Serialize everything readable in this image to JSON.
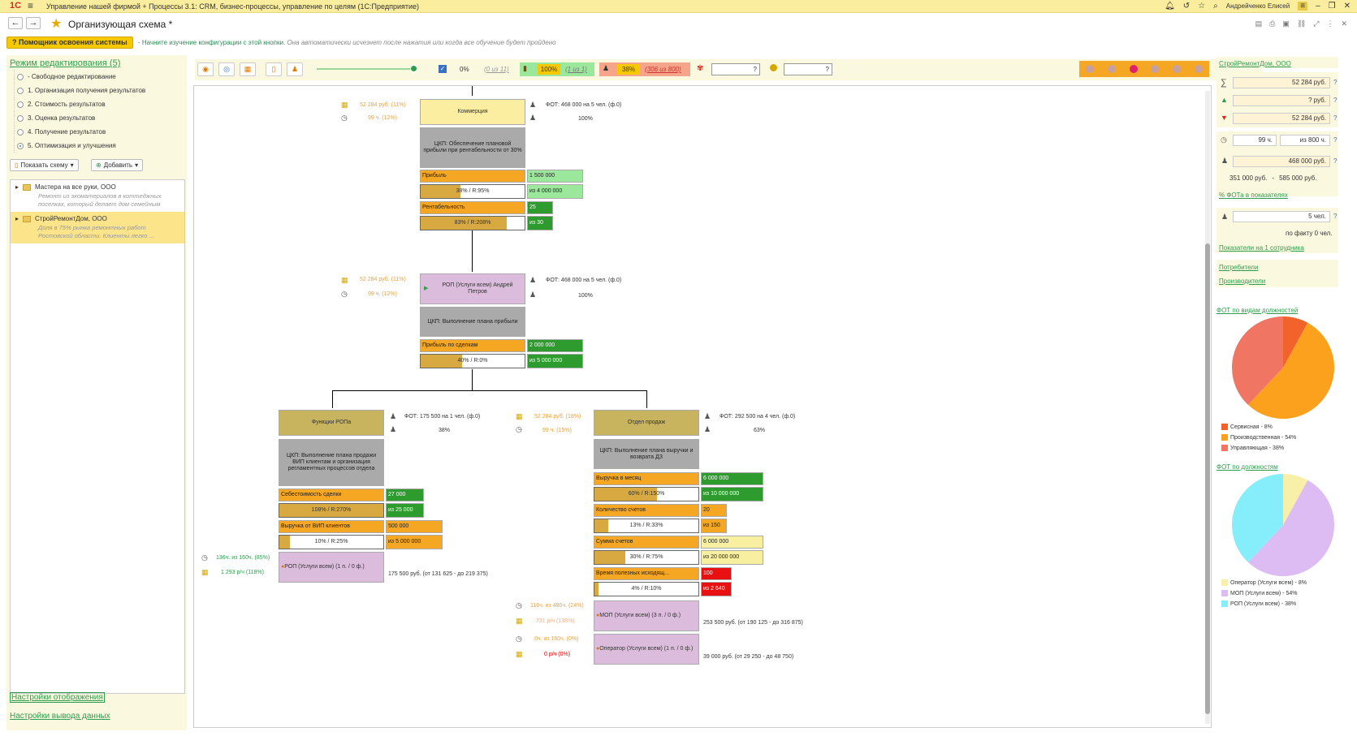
{
  "window": {
    "title": "Управление нашей фирмой + Процессы 3.1: CRM, бизнес-процессы, управление по целям (1С:Предприятие)",
    "logo": "1С",
    "user": "Андрейченко Елисей"
  },
  "page": {
    "title": "Организующая схема *"
  },
  "help": {
    "button": "Помощник освоения системы",
    "text_green": "- Начните изучение конфигурации с этой кнопки.",
    "text_gray": "Она автоматически исчезнет после нажатия или когда все обучение будет пройдено"
  },
  "left": {
    "mode_title": "Режим редактирования (5)",
    "modes": [
      "- Свободное редактирование",
      "1. Организация получения результатов",
      "2. Стоимость результатов",
      "3. Оценка результатов",
      "4. Получение результатов",
      "5. Оптимизация и улучшения"
    ],
    "show_schema": "Показать схему",
    "add": "Добавить",
    "tree": [
      {
        "name": "Мастера на все руки, ООО",
        "desc": "Ремонт из экоматериалов в коттеджных поселках, который делает дом семейным"
      },
      {
        "name": "СтройРемонтДом, ООО",
        "desc": "Доля в 75% рынка ремонтных работ Ростовской области. Клиенты легко ..."
      }
    ],
    "display_settings": "Настройки отображения",
    "output_settings": "Настройки вывода данных"
  },
  "toolbar": {
    "pct1": "0%",
    "pct1_of": "(0 из 11)",
    "pct2": "100%",
    "pct2_of": "(1 из 1)",
    "pct3": "38%",
    "pct3_of": "(306 из 800)",
    "q": "?"
  },
  "canvas": {
    "n1": {
      "side1": "52 284 руб. (11%)",
      "side2": "99 ч. (12%)",
      "title": "Коммерция",
      "fot": "ФОТ: 468 000 на 5 чел. (ф.0)",
      "pct": "100%",
      "ckp": "ЦКП: Обеспечение плановой прибыли при рентабельности от 30%",
      "k1": {
        "label": "Прибыль",
        "value": "1 500 000",
        "bar": "38% / R:95%",
        "bar_fill": 0.38,
        "of": "из 4 000 000"
      },
      "k2": {
        "label": "Рентабельность",
        "value": "25",
        "bar": "83% / R:208%",
        "bar_fill": 0.83,
        "of": "из 30"
      }
    },
    "n2": {
      "side1": "52 284 руб. (11%)",
      "side2": "99 ч. (12%)",
      "title": "РОП (Услуги всем) Андрей Петров",
      "fot": "ФОТ: 468 000 на 5 чел. (ф.0)",
      "pct": "100%",
      "ckp": "ЦКП: Выполнение плана прибыли",
      "k1": {
        "label": "Прибыль по сделкам",
        "value": "2 000 000",
        "bar": "40% / R:0%",
        "bar_fill": 0.4,
        "of": "из 5 000 000"
      }
    },
    "n3": {
      "title": "Функции РОПа",
      "fot": "ФОТ: 175 500 на 1 чел. (ф.0)",
      "pct": "38%",
      "ckp": "ЦКП: Выполнение плана продажи ВИП клиентам и организация регламентных процессов отдела",
      "k1": {
        "label": "Себестоимость сделки",
        "value": "27 000",
        "bar": "108% / R:270%",
        "bar_fill": 1.0,
        "of": "из 25 000"
      },
      "k2": {
        "label": "Выручка от ВИП клиентов",
        "value": "500 000",
        "bar": "10% / R:25%",
        "bar_fill": 0.1,
        "of": "из 5 000 000"
      },
      "side1": "136ч. из 160ч. (85%)",
      "side2": "1 293 р/ч (118%)",
      "emp": "РОП (Услуги всем) (1 п. / 0 ф.)",
      "emp_salary": "175 500 руб. (от 131 625 - до 219 375)"
    },
    "n4": {
      "side1": "52 284 руб. (18%)",
      "side2": "99 ч. (15%)",
      "title": "Отдел продаж",
      "fot": "ФОТ: 292 500 на 4 чел. (ф.0)",
      "pct": "63%",
      "ckp": "ЦКП: Выполнение плана выручки и возврата ДЗ",
      "k1": {
        "label": "Выручка в месяц",
        "value": "6 000 000",
        "bar": "60% / R:150%",
        "bar_fill": 0.6,
        "of": "из 10 000 000"
      },
      "k2": {
        "label": "Количество счетов",
        "value": "20",
        "bar": "13% / R:33%",
        "bar_fill": 0.13,
        "of": "из 150"
      },
      "k3": {
        "label": "Сумма счетов",
        "value": "6 000 000",
        "bar": "30% / R:75%",
        "bar_fill": 0.3,
        "of": "из 20 000 000"
      },
      "k4": {
        "label": "Время полезных исходящ...",
        "value": "100",
        "bar": "4% / R:10%",
        "bar_fill": 0.04,
        "of": "из 2 640"
      },
      "e1": {
        "side1": "116ч. из 480ч. (24%)",
        "side2": "731 р/ч (138%)",
        "name": "МОП (Услуги всем) (3 п. / 0 ф.)",
        "salary": "253 500 руб. (от 190 125 - до 316 875)"
      },
      "e2": {
        "side1": "0ч. из 160ч. (0%)",
        "side2": "0 р/ч (0%)",
        "name": "Оператор (Услуги всем) (1 п. / 0 ф.)",
        "salary": "39 000 руб. (от 29 250 - до 48 750)"
      }
    }
  },
  "right": {
    "org": "СтройРемонтДом, ООО",
    "sum": "52 284 руб.",
    "plus": "? руб.",
    "minus": "52 284 руб.",
    "q": "?",
    "hours": "99 ч.",
    "hours_of": "из 800 ч.",
    "fot": "468 000 руб.",
    "fot_range_from": "351 000 руб.",
    "fot_range_sep": "-",
    "fot_range_to": "585 000 руб.",
    "fot_link": "% ФОТа в показателях",
    "people": "5 чел.",
    "people_fact": "по факту 0 чел.",
    "per_employee": "Показатели на 1 сотрудника",
    "consumers": "Потребители",
    "producers": "Производители",
    "chart1_title": "ФОТ по видам должностей",
    "chart2_title": "ФОТ по должностям"
  },
  "chart_data": [
    {
      "type": "pie",
      "title": "ФОТ по видам должностей",
      "series": [
        {
          "values": [
            8,
            54,
            38
          ]
        }
      ],
      "categories": [
        "Сервисная - 8%",
        "Производственная - 54%",
        "Управляющая - 38%"
      ],
      "colors": [
        "#f2622b",
        "#fba11d",
        "#f07563"
      ],
      "legend": "bottom"
    },
    {
      "type": "pie",
      "title": "ФОТ по должностям",
      "series": [
        {
          "values": [
            8,
            54,
            38
          ]
        }
      ],
      "categories": [
        "Оператор (Услуги всем) - 8%",
        "МОП (Услуги всем) - 54%",
        "РОП (Услуги всем) - 38%"
      ],
      "colors": [
        "#f8efa8",
        "#dcbcf3",
        "#86eefa"
      ],
      "legend": "bottom"
    }
  ]
}
